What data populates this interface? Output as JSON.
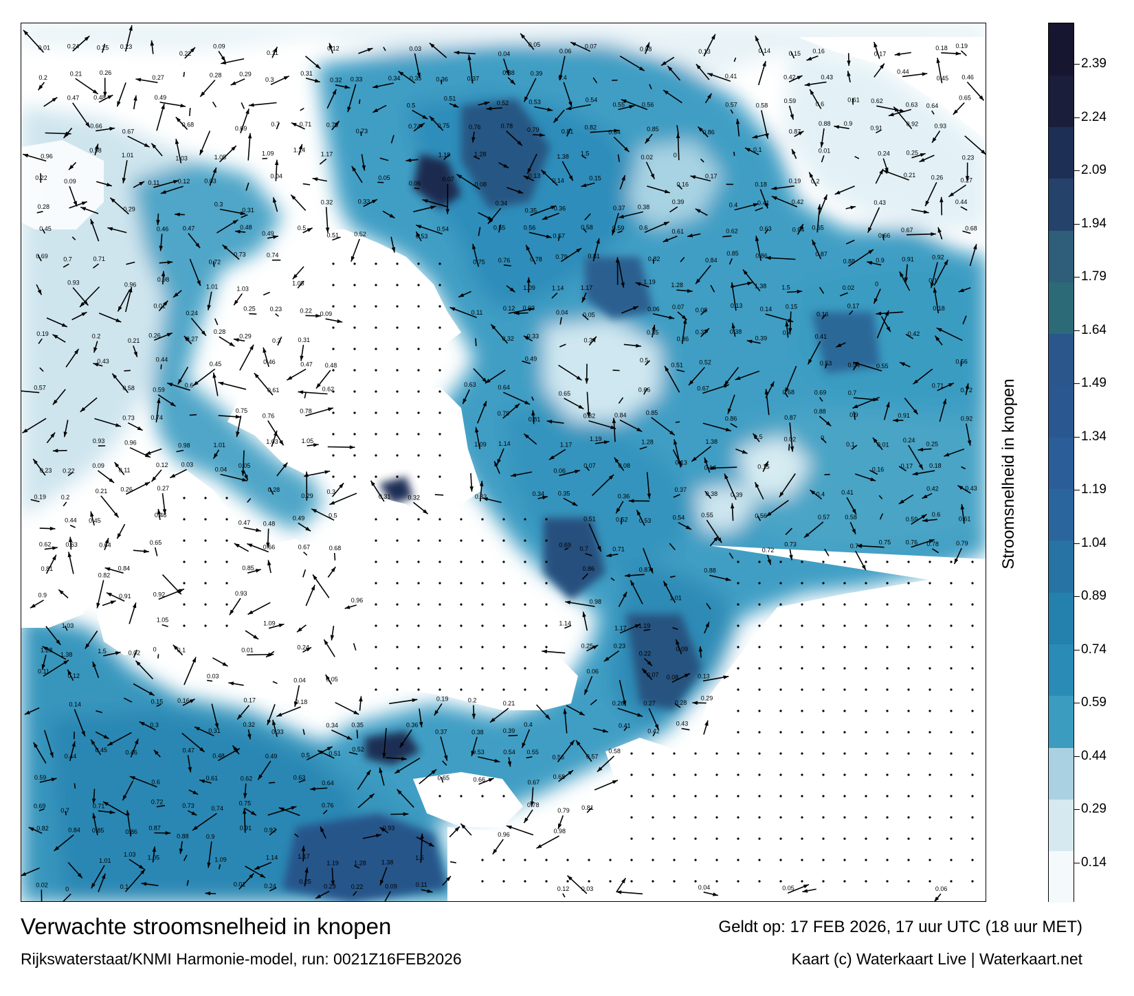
{
  "title": "Verwachte stroomsnelheid in knopen",
  "subtitle": "Rijkswaterstaat/KNMI Harmonie-model, run: 0021Z16FEB2026",
  "valid_time": "Geldt op: 17 FEB 2026, 17 uur UTC (18 uur MET)",
  "credit": "Kaart (c) Waterkaart Live | Waterkaart.net",
  "colorbar": {
    "title": "Stroomsnelheid in knopen",
    "ticks": [
      "2.39",
      "2.24",
      "2.09",
      "1.94",
      "1.79",
      "1.64",
      "1.49",
      "1.34",
      "1.19",
      "1.04",
      "0.89",
      "0.74",
      "0.59",
      "0.44",
      "0.29",
      "0.14"
    ],
    "colors": [
      "#f4f9fb",
      "#d6e9f0",
      "#a9d1e1",
      "#3c9cc0",
      "#2a8bb6",
      "#2480ad",
      "#2673a4",
      "#2a669d",
      "#2b5d98",
      "#2a5790",
      "#2b568c",
      "#2d6a78",
      "#2e5e7a",
      "#25426a",
      "#1e2f55",
      "#1b1e3a",
      "#161630"
    ]
  },
  "map": {
    "labels": [
      "0.01",
      "0.24",
      "0.25",
      "0.23",
      "0.22",
      "0.09",
      "0.11",
      "0.12",
      "0.03",
      "0.04",
      "0.05",
      "0.06",
      "0.07",
      "0.08",
      "0.13",
      "0.14",
      "0.15",
      "0.16",
      "0.17",
      "0.18",
      "0.19",
      "0.2",
      "0.21",
      "0.26",
      "0.27",
      "0.28",
      "0.29",
      "0.3",
      "0.31",
      "0.32",
      "0.33",
      "0.34",
      "0.35",
      "0.36",
      "0.37",
      "0.38",
      "0.39",
      "0.4",
      "0.41",
      "0.42",
      "0.43",
      "0.44",
      "0.45",
      "0.46",
      "0.47",
      "0.48",
      "0.49",
      "0.5",
      "0.51",
      "0.52",
      "0.53",
      "0.54",
      "0.55",
      "0.56",
      "0.57",
      "0.58",
      "0.59",
      "0.6",
      "0.61",
      "0.62",
      "0.63",
      "0.64",
      "0.65",
      "0.66",
      "0.67",
      "0.68",
      "0.69",
      "0.7",
      "0.71",
      "0.72",
      "0.73",
      "0.74",
      "0.75",
      "0.76",
      "0.78",
      "0.79",
      "0.81",
      "0.82",
      "0.84",
      "0.85",
      "0.86",
      "0.87",
      "0.88",
      "0.9",
      "0.91",
      "0.92",
      "0.93",
      "0.96",
      "0.98",
      "1.01",
      "1.03",
      "1.05",
      "1.09",
      "1.14",
      "1.17",
      "1.19",
      "1.28",
      "1.38",
      "1.5",
      "0.02",
      "0",
      "0.1"
    ]
  }
}
